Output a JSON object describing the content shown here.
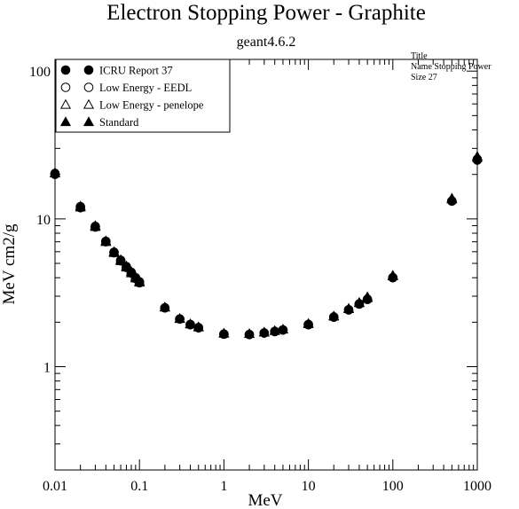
{
  "chart_data": {
    "type": "scatter",
    "title": "Electron Stopping Power - Graphite",
    "subtitle": "geant4.6.2",
    "xlabel": "MeV",
    "ylabel": "MeV cm2/g",
    "xscale": "log",
    "yscale": "log",
    "xlim": [
      0.01,
      1000
    ],
    "ylim": [
      0.2,
      120
    ],
    "x_ticks": [
      {
        "value": 0.01,
        "label": "0.01"
      },
      {
        "value": 0.1,
        "label": "0.1"
      },
      {
        "value": 1,
        "label": "1"
      },
      {
        "value": 10,
        "label": "10"
      },
      {
        "value": 100,
        "label": "100"
      },
      {
        "value": 1000,
        "label": "1000"
      }
    ],
    "y_ticks": [
      {
        "value": 1,
        "label": "1"
      },
      {
        "value": 10,
        "label": "10"
      },
      {
        "value": 100,
        "label": "100"
      }
    ],
    "grid": false,
    "legend_position": "top-left",
    "series": [
      {
        "name": "ICRU Report 37",
        "marker": "filled-circle",
        "x": [
          0.01,
          0.02,
          0.03,
          0.04,
          0.05,
          0.06,
          0.07,
          0.08,
          0.09,
          0.1,
          0.2,
          0.3,
          0.4,
          0.5,
          1,
          2,
          3,
          4,
          5,
          10,
          20,
          30,
          40,
          50,
          100,
          500,
          1000
        ],
        "y": [
          20,
          11.9,
          8.8,
          7.0,
          5.9,
          5.2,
          4.7,
          4.3,
          3.95,
          3.7,
          2.5,
          2.1,
          1.92,
          1.83,
          1.66,
          1.65,
          1.69,
          1.73,
          1.77,
          1.92,
          2.16,
          2.42,
          2.65,
          2.85,
          4.0,
          13.2,
          25
        ]
      },
      {
        "name": "Low Energy - EEDL",
        "marker": "open-circle",
        "x": [
          0.01,
          0.02,
          0.03,
          0.04,
          0.05,
          0.06,
          0.07,
          0.08,
          0.09,
          0.1,
          0.2,
          0.3,
          0.4,
          0.5,
          1,
          2,
          3,
          4,
          5,
          10,
          20,
          30,
          40,
          50,
          100,
          500,
          1000
        ],
        "y": [
          20.3,
          12.1,
          8.9,
          7.05,
          5.95,
          5.25,
          4.75,
          4.35,
          4.0,
          3.75,
          2.5,
          2.1,
          1.93,
          1.84,
          1.66,
          1.65,
          1.69,
          1.73,
          1.77,
          1.93,
          2.17,
          2.43,
          2.66,
          2.86,
          4.0,
          13.2,
          25.3
        ]
      },
      {
        "name": "Low Energy - penelope",
        "marker": "open-triangle",
        "x": [
          0.01,
          0.02,
          0.03,
          0.04,
          0.05,
          0.06,
          0.07,
          0.08,
          0.09,
          0.1,
          0.2,
          0.3,
          0.4,
          0.5,
          1,
          2,
          3,
          4,
          5,
          10,
          20,
          30,
          40,
          50,
          100,
          500,
          1000
        ],
        "y": [
          20.5,
          12.2,
          9.0,
          7.1,
          6.0,
          5.3,
          4.8,
          4.4,
          4.05,
          3.78,
          2.53,
          2.12,
          1.95,
          1.86,
          1.68,
          1.67,
          1.71,
          1.75,
          1.79,
          1.95,
          2.19,
          2.46,
          2.7,
          2.92,
          4.1,
          13.6,
          26
        ]
      },
      {
        "name": "Standard",
        "marker": "filled-triangle",
        "x": [
          0.01,
          0.02,
          0.03,
          0.04,
          0.05,
          0.06,
          0.07,
          0.08,
          0.09,
          0.1,
          0.2,
          0.3,
          0.4,
          0.5,
          1,
          2,
          3,
          4,
          5,
          10,
          20,
          30,
          40,
          50,
          100,
          500,
          1000
        ],
        "y": [
          20.4,
          12.0,
          8.85,
          7.0,
          5.9,
          5.2,
          4.7,
          4.3,
          3.97,
          3.72,
          2.52,
          2.11,
          1.94,
          1.85,
          1.68,
          1.67,
          1.71,
          1.75,
          1.79,
          1.96,
          2.2,
          2.48,
          2.72,
          2.97,
          4.15,
          13.8,
          26.5
        ]
      }
    ]
  },
  "stats_box": {
    "line1": "Title",
    "line2": "Name  Stopping Power",
    "line3": "Size  27"
  }
}
